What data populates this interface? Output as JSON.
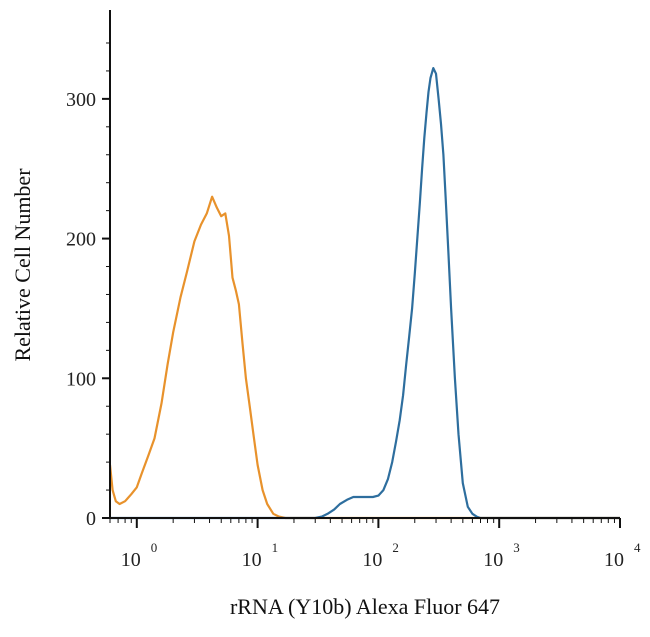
{
  "chart_data": {
    "type": "line",
    "xlabel": "rRNA (Y10b) Alexa Fluor 647",
    "ylabel": "Relative Cell Number",
    "xscale": "log",
    "xlim": [
      0.6,
      10000
    ],
    "ylim": [
      0,
      345
    ],
    "grid": false,
    "y_ticks": [
      0,
      100,
      200,
      300
    ],
    "x_ticks": [
      {
        "value": 1,
        "base": "10",
        "exponent": "0"
      },
      {
        "value": 10,
        "base": "10",
        "exponent": "1"
      },
      {
        "value": 100,
        "base": "10",
        "exponent": "2"
      },
      {
        "value": 1000,
        "base": "10",
        "exponent": "3"
      },
      {
        "value": 10000,
        "base": "10",
        "exponent": "4"
      }
    ],
    "series": [
      {
        "color": "#e8922c",
        "x": [
          0.6,
          0.63,
          0.67,
          0.72,
          0.8,
          0.9,
          1.0,
          1.1,
          1.25,
          1.4,
          1.6,
          1.8,
          2.0,
          2.3,
          2.6,
          3.0,
          3.4,
          3.8,
          4.2,
          4.6,
          5.0,
          5.4,
          5.8,
          6.2,
          6.6,
          7.0,
          7.5,
          8.0,
          8.6,
          9.3,
          10.0,
          11.0,
          12.0,
          13.5,
          15.0,
          17.0,
          19.0,
          21.0,
          25.0,
          40.0,
          100,
          300,
          1000,
          3000,
          10000
        ],
        "y": [
          38,
          20,
          12,
          10,
          12,
          17,
          22,
          32,
          45,
          57,
          82,
          110,
          133,
          158,
          176,
          198,
          210,
          218,
          230,
          222,
          216,
          218,
          202,
          172,
          163,
          153,
          125,
          100,
          80,
          58,
          38,
          20,
          10,
          3,
          1,
          0,
          0,
          0,
          0,
          0,
          0,
          0,
          0,
          0,
          0
        ]
      },
      {
        "color": "#2e6e9e",
        "x": [
          0.6,
          1,
          3,
          10,
          20,
          30,
          34,
          38,
          43,
          48,
          55,
          62,
          70,
          80,
          90,
          100,
          110,
          120,
          130,
          140,
          150,
          160,
          170,
          180,
          190,
          200,
          210,
          220,
          230,
          240,
          250,
          260,
          270,
          285,
          300,
          315,
          330,
          345,
          360,
          380,
          400,
          430,
          460,
          500,
          550,
          600,
          650,
          700,
          800,
          1000,
          3000,
          10000
        ],
        "y": [
          0,
          0,
          0,
          0,
          0,
          0,
          1,
          3,
          6,
          10,
          13,
          15,
          15,
          15,
          15,
          16,
          20,
          28,
          40,
          55,
          70,
          88,
          110,
          130,
          150,
          175,
          200,
          225,
          250,
          272,
          290,
          305,
          315,
          322,
          318,
          300,
          282,
          260,
          230,
          190,
          150,
          100,
          60,
          25,
          8,
          3,
          1,
          0,
          0,
          0,
          0,
          0
        ]
      }
    ]
  }
}
